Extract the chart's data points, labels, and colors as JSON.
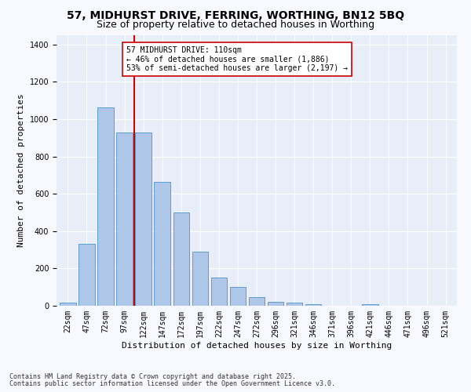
{
  "title1": "57, MIDHURST DRIVE, FERRING, WORTHING, BN12 5BQ",
  "title2": "Size of property relative to detached houses in Worthing",
  "xlabel": "Distribution of detached houses by size in Worthing",
  "ylabel": "Number of detached properties",
  "categories": [
    "22sqm",
    "47sqm",
    "72sqm",
    "97sqm",
    "122sqm",
    "147sqm",
    "172sqm",
    "197sqm",
    "222sqm",
    "247sqm",
    "272sqm",
    "296sqm",
    "321sqm",
    "346sqm",
    "371sqm",
    "396sqm",
    "421sqm",
    "446sqm",
    "471sqm",
    "496sqm",
    "521sqm"
  ],
  "values": [
    15,
    330,
    1065,
    930,
    930,
    665,
    500,
    290,
    150,
    100,
    45,
    20,
    15,
    10,
    0,
    0,
    8,
    0,
    0,
    0,
    0
  ],
  "bar_color": "#aec6e8",
  "bar_edge_color": "#5a9fd4",
  "vline_color": "#cc0000",
  "annotation_text": "57 MIDHURST DRIVE: 110sqm\n← 46% of detached houses are smaller (1,886)\n53% of semi-detached houses are larger (2,197) →",
  "annotation_box_color": "#ffffff",
  "annotation_box_edge": "#cc0000",
  "ylim": [
    0,
    1450
  ],
  "yticks": [
    0,
    200,
    400,
    600,
    800,
    1000,
    1200,
    1400
  ],
  "footer1": "Contains HM Land Registry data © Crown copyright and database right 2025.",
  "footer2": "Contains public sector information licensed under the Open Government Licence v3.0.",
  "bg_color": "#e8eef8",
  "fig_bg_color": "#f8f8ff",
  "title_fontsize": 10,
  "subtitle_fontsize": 9,
  "axis_label_fontsize": 8,
  "tick_fontsize": 7,
  "footer_fontsize": 6,
  "annotation_fontsize": 7
}
